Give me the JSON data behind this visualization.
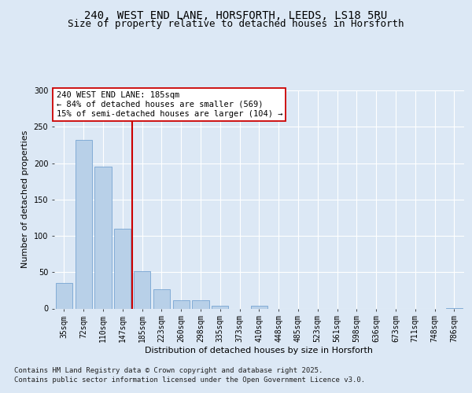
{
  "title_line1": "240, WEST END LANE, HORSFORTH, LEEDS, LS18 5RU",
  "title_line2": "Size of property relative to detached houses in Horsforth",
  "xlabel": "Distribution of detached houses by size in Horsforth",
  "ylabel": "Number of detached properties",
  "categories": [
    "35sqm",
    "72sqm",
    "110sqm",
    "147sqm",
    "185sqm",
    "223sqm",
    "260sqm",
    "298sqm",
    "335sqm",
    "373sqm",
    "410sqm",
    "448sqm",
    "485sqm",
    "523sqm",
    "561sqm",
    "598sqm",
    "636sqm",
    "673sqm",
    "711sqm",
    "748sqm",
    "786sqm"
  ],
  "values": [
    35,
    232,
    195,
    110,
    51,
    26,
    11,
    11,
    4,
    0,
    4,
    0,
    0,
    0,
    0,
    0,
    0,
    0,
    0,
    0,
    1
  ],
  "bar_color": "#b8d0e8",
  "bar_edge_color": "#6699cc",
  "vline_color": "#cc0000",
  "vline_idx": 3.5,
  "annotation_text": "240 WEST END LANE: 185sqm\n← 84% of detached houses are smaller (569)\n15% of semi-detached houses are larger (104) →",
  "annotation_box_facecolor": "#ffffff",
  "annotation_box_edgecolor": "#cc0000",
  "ylim": [
    0,
    300
  ],
  "yticks": [
    0,
    50,
    100,
    150,
    200,
    250,
    300
  ],
  "bg_color": "#dce8f5",
  "footer_line1": "Contains HM Land Registry data © Crown copyright and database right 2025.",
  "footer_line2": "Contains public sector information licensed under the Open Government Licence v3.0.",
  "title_fontsize": 10,
  "subtitle_fontsize": 9,
  "axis_label_fontsize": 8,
  "tick_fontsize": 7,
  "annotation_fontsize": 7.5,
  "footer_fontsize": 6.5
}
